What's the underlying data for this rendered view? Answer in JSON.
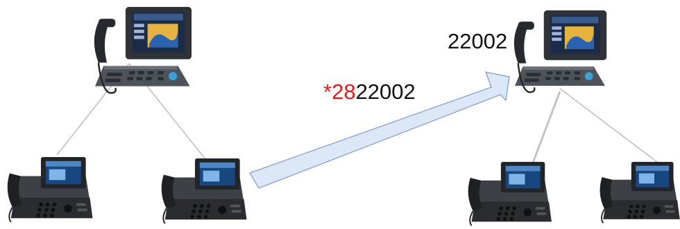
{
  "destination_number": "22002",
  "dial_string": {
    "prefix": "*",
    "feature_code": "28",
    "number": "22002"
  },
  "colors": {
    "prefix": "#e01b1b",
    "feature_code": "#e01b1b",
    "text": "#111111",
    "arrow_fill": "#dce7f8",
    "arrow_stroke": "#7f98c7",
    "links": "#bdbdbd"
  },
  "devices": [
    {
      "name": "top-left-desk-phone",
      "icon": "ip-desk-phone-icon"
    },
    {
      "name": "bottom-left-phone-1",
      "icon": "ip-desk-phone-icon"
    },
    {
      "name": "bottom-left-phone-2",
      "icon": "ip-desk-phone-icon"
    },
    {
      "name": "top-right-desk-phone",
      "icon": "ip-desk-phone-icon"
    },
    {
      "name": "bottom-right-phone-1",
      "icon": "ip-desk-phone-icon"
    },
    {
      "name": "bottom-right-phone-2",
      "icon": "ip-desk-phone-icon"
    }
  ]
}
